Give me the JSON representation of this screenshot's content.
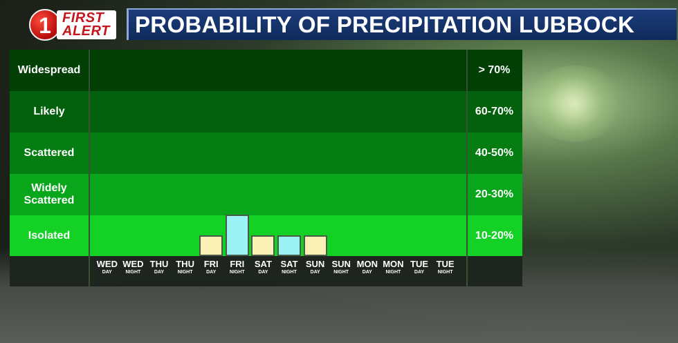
{
  "header": {
    "logo_number": "1",
    "logo_line1": "FIRST",
    "logo_line2": "ALERT",
    "title": "PROBABILITY OF PRECIPITATION LUBBOCK"
  },
  "colors": {
    "band_widespread": "#013f05",
    "band_likely": "#03600c",
    "band_scattered": "#057d12",
    "band_widely_scattered": "#09a51a",
    "band_isolated": "#13d225",
    "day_bar": "#fbf1b5",
    "night_bar": "#9cf3f6",
    "title_bar": "#163a74"
  },
  "chart_data": {
    "type": "bar",
    "title": "PROBABILITY OF PRECIPITATION LUBBOCK",
    "categories": [
      {
        "day": "WED",
        "period": "DAY"
      },
      {
        "day": "WED",
        "period": "NIGHT"
      },
      {
        "day": "THU",
        "period": "DAY"
      },
      {
        "day": "THU",
        "period": "NIGHT"
      },
      {
        "day": "FRI",
        "period": "DAY"
      },
      {
        "day": "FRI",
        "period": "NIGHT"
      },
      {
        "day": "SAT",
        "period": "DAY"
      },
      {
        "day": "SAT",
        "period": "NIGHT"
      },
      {
        "day": "SUN",
        "period": "DAY"
      },
      {
        "day": "SUN",
        "period": "NIGHT"
      },
      {
        "day": "MON",
        "period": "DAY"
      },
      {
        "day": "MON",
        "period": "NIGHT"
      },
      {
        "day": "TUE",
        "period": "DAY"
      },
      {
        "day": "TUE",
        "period": "NIGHT"
      }
    ],
    "values": [
      0,
      0,
      0,
      0,
      10,
      20,
      10,
      10,
      10,
      0,
      0,
      0,
      0,
      0
    ],
    "ylim": [
      0,
      100
    ],
    "bands": [
      {
        "label": "Widespread",
        "range": "> 70%"
      },
      {
        "label": "Likely",
        "range": "60-70%"
      },
      {
        "label": "Scattered",
        "range": "40-50%"
      },
      {
        "label": "Widely Scattered",
        "range": "20-30%"
      },
      {
        "label": "Isolated",
        "range": "10-20%"
      }
    ],
    "grid": false,
    "legend": "none"
  }
}
